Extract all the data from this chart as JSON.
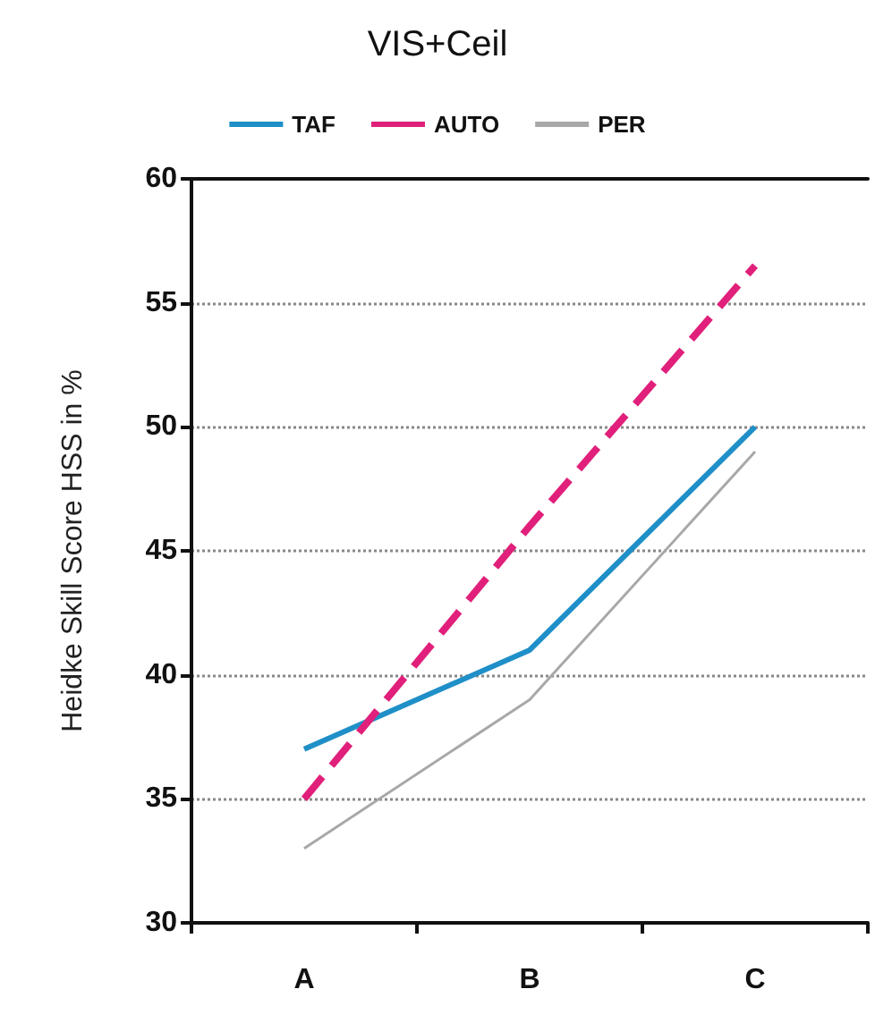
{
  "chart_data": {
    "type": "line",
    "title": "VIS+Ceil",
    "ylabel": "Heidke Skill Score HSS in %",
    "categories": [
      "A",
      "B",
      "C"
    ],
    "series": [
      {
        "name": "TAF",
        "color": "#1f8fc8",
        "values": [
          37,
          41,
          50
        ],
        "line_style": "solid"
      },
      {
        "name": "AUTO",
        "color": "#e0207a",
        "values": [
          35,
          46,
          56.5
        ],
        "line_style": "dashed"
      },
      {
        "name": "PER",
        "color": "#a8a8a8",
        "values": [
          33,
          39,
          49
        ],
        "line_style": "solid"
      }
    ],
    "ylim": [
      30,
      60
    ],
    "yticks": [
      30,
      35,
      40,
      45,
      50,
      55,
      60
    ],
    "grid": "y",
    "legend": "top",
    "marker": "none"
  }
}
